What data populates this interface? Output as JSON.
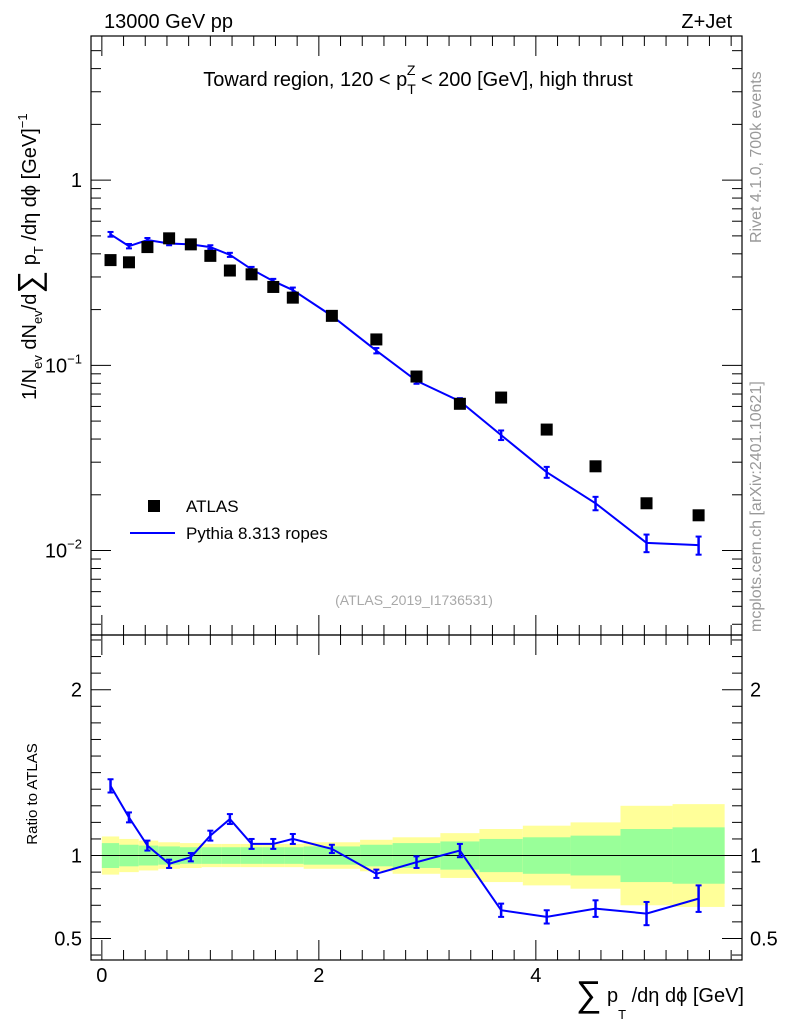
{
  "header": {
    "energy_label": "13000 GeV pp",
    "process_label": "Z+Jet"
  },
  "side_labels": {
    "rivet": "Rivet 4.1.0,  700k events",
    "mcplots": "mcplots.cern.ch [arXiv:2401.10621]"
  },
  "watermark": "(ATLAS_2019_I1736531)",
  "chart_data": [
    {
      "type": "scatter",
      "title_parts": {
        "prefix": "Toward region, 120 < p",
        "sup": "Z",
        "sub": "T",
        "suffix": " < 200 [GeV], high thrust"
      },
      "yscale": "log",
      "ylim": [
        0.0035,
        6
      ],
      "xlim": [
        -0.1,
        5.9
      ],
      "yticks": [
        {
          "value": 1,
          "base": "1",
          "exp": ""
        },
        {
          "value": 0.1,
          "base": "10",
          "exp": "−1"
        },
        {
          "value": 0.01,
          "base": "10",
          "exp": "−2"
        }
      ],
      "ylabel_parts": {
        "a": "1/N",
        "a_sub": "ev",
        "b": " dN",
        "b_sub": "ev",
        "c": "/d",
        "sum": "∑",
        "d": " p",
        "d_sub": "T",
        "e": " /dη dϕ  [GeV]",
        "e_sup": "−1"
      },
      "legend": {
        "position": "lower-left",
        "data_label": "ATLAS",
        "mc_label": "Pythia 8.313 ropes"
      },
      "series": [
        {
          "name": "ATLAS",
          "x": [
            0.08,
            0.25,
            0.42,
            0.62,
            0.82,
            1.0,
            1.18,
            1.38,
            1.58,
            1.76,
            2.12,
            2.53,
            2.9,
            3.3,
            3.68,
            4.1,
            4.55,
            5.02,
            5.5
          ],
          "y": [
            0.37,
            0.36,
            0.435,
            0.485,
            0.45,
            0.39,
            0.325,
            0.31,
            0.265,
            0.232,
            0.185,
            0.138,
            0.087,
            0.062,
            0.067,
            0.045,
            0.0285,
            0.018,
            0.0155
          ]
        },
        {
          "name": "Pythia 8.313 ropes",
          "x": [
            0.08,
            0.25,
            0.42,
            0.62,
            0.82,
            1.0,
            1.18,
            1.38,
            1.58,
            1.76,
            2.12,
            2.53,
            2.9,
            3.3,
            3.68,
            4.1,
            4.55,
            5.02,
            5.5
          ],
          "y": [
            0.51,
            0.44,
            0.475,
            0.455,
            0.45,
            0.435,
            0.395,
            0.33,
            0.285,
            0.255,
            0.185,
            0.12,
            0.0825,
            0.064,
            0.042,
            0.0265,
            0.018,
            0.011,
            0.0107
          ],
          "yerr": [
            0.015,
            0.012,
            0.012,
            0.01,
            0.01,
            0.01,
            0.01,
            0.01,
            0.008,
            0.008,
            0.006,
            0.004,
            0.003,
            0.0025,
            0.0025,
            0.0018,
            0.0015,
            0.0012,
            0.0012
          ]
        }
      ]
    },
    {
      "type": "line",
      "ylabel": "Ratio to ATLAS",
      "xlabel_parts": {
        "sum": "∑",
        "p": " p",
        "sub": "T",
        "rest": " /dη dϕ [GeV]"
      },
      "ylim": [
        0.37,
        2.33
      ],
      "xlim": [
        -0.1,
        5.9
      ],
      "xticks": [
        0,
        2,
        4
      ],
      "yticks": [
        0.5,
        1,
        2
      ],
      "reference_line": 1,
      "band_edges": [
        0,
        0.16,
        0.34,
        0.52,
        0.72,
        0.92,
        1.1,
        1.28,
        1.48,
        1.68,
        1.86,
        2.38,
        2.68,
        3.12,
        3.48,
        3.88,
        4.32,
        4.78,
        5.26,
        5.74
      ],
      "band_inner": [
        0.075,
        0.065,
        0.06,
        0.055,
        0.05,
        0.05,
        0.05,
        0.05,
        0.05,
        0.05,
        0.055,
        0.065,
        0.075,
        0.085,
        0.1,
        0.11,
        0.12,
        0.16,
        0.17
      ],
      "band_outer": [
        0.115,
        0.1,
        0.09,
        0.08,
        0.075,
        0.07,
        0.07,
        0.07,
        0.07,
        0.07,
        0.08,
        0.095,
        0.11,
        0.135,
        0.16,
        0.18,
        0.2,
        0.3,
        0.31
      ],
      "series": [
        {
          "name": "Pythia 8.313 ropes / ATLAS",
          "x": [
            0.08,
            0.25,
            0.42,
            0.62,
            0.82,
            1.0,
            1.18,
            1.38,
            1.58,
            1.76,
            2.12,
            2.53,
            2.9,
            3.3,
            3.68,
            4.1,
            4.55,
            5.02,
            5.5
          ],
          "y": [
            1.42,
            1.23,
            1.06,
            0.95,
            0.99,
            1.12,
            1.22,
            1.07,
            1.07,
            1.1,
            1.04,
            0.89,
            0.96,
            1.03,
            0.67,
            0.63,
            0.68,
            0.65,
            0.74
          ],
          "yerr": [
            0.04,
            0.03,
            0.03,
            0.025,
            0.025,
            0.03,
            0.03,
            0.03,
            0.03,
            0.03,
            0.025,
            0.025,
            0.035,
            0.04,
            0.04,
            0.04,
            0.05,
            0.07,
            0.08
          ]
        }
      ]
    }
  ]
}
